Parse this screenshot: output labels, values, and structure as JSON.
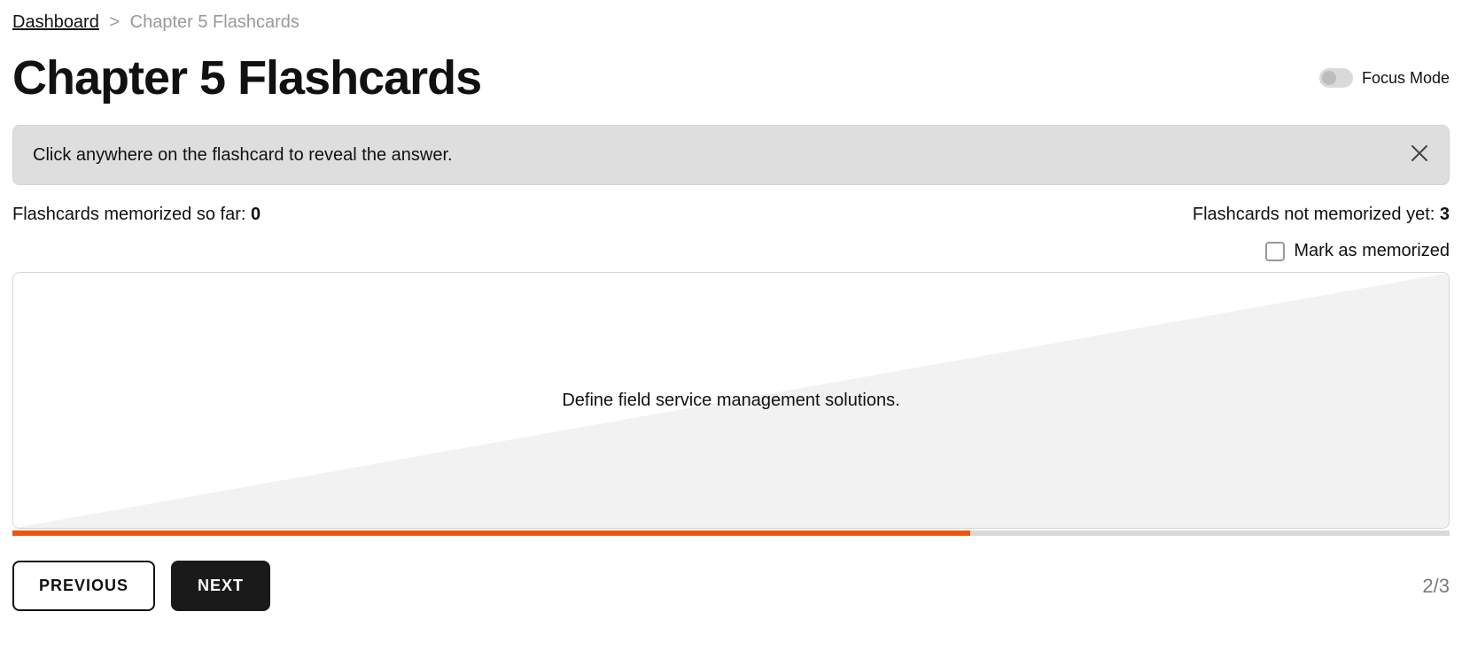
{
  "breadcrumb": {
    "parent": "Dashboard",
    "separator": ">",
    "current": "Chapter 5 Flashcards"
  },
  "header": {
    "title": "Chapter 5 Flashcards",
    "focus_mode_label": "Focus Mode",
    "focus_mode_on": false
  },
  "alert": {
    "message": "Click anywhere on the flashcard to reveal the answer."
  },
  "stats": {
    "memorized_label": "Flashcards memorized so far: ",
    "memorized_count": "0",
    "not_memorized_label": "Flashcards not memorized yet: ",
    "not_memorized_count": "3"
  },
  "mark": {
    "label": "Mark as memorized",
    "checked": false
  },
  "flashcard": {
    "question": "Define field service management solutions."
  },
  "progress": {
    "current": 2,
    "total": 3,
    "percent": 66.6667,
    "fill_color": "#ea580c",
    "track_color": "#d9d9d9"
  },
  "nav": {
    "previous_label": "PREVIOUS",
    "next_label": "NEXT"
  },
  "page_counter": {
    "current": "2",
    "separator": "/",
    "total": "3"
  },
  "colors": {
    "text": "#111111",
    "muted": "#999999",
    "alert_bg": "#dedede",
    "card_border": "#d4d4d4",
    "card_shade": "#f2f2f2",
    "progress_fill": "#ea580c",
    "progress_track": "#d9d9d9",
    "counter_color": "#7a7a7a",
    "btn_primary_bg": "#1a1a1a",
    "btn_primary_fg": "#ffffff",
    "btn_secondary_bg": "#ffffff",
    "btn_secondary_fg": "#111111"
  }
}
